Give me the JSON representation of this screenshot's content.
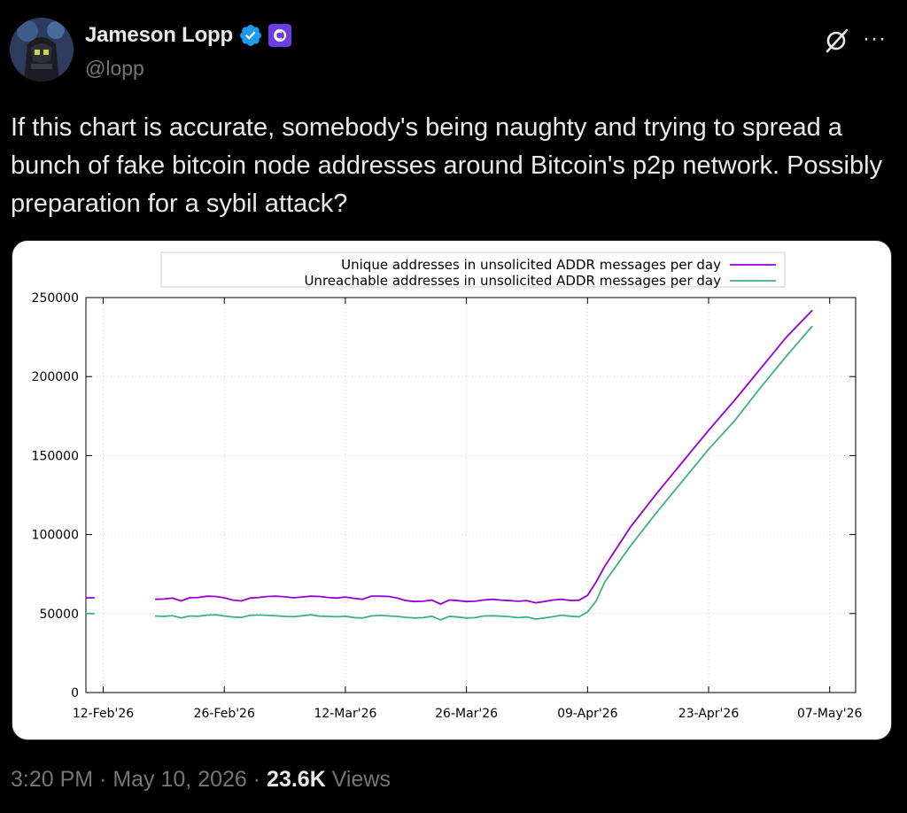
{
  "author": {
    "name": "Jameson Lopp",
    "handle": "@lopp",
    "verified": true,
    "affiliate_badge_color": "#6d3fe0",
    "verified_color": "#1d9bf0"
  },
  "actions": {
    "grok_icon": "grok-icon",
    "more_label": "···"
  },
  "tweet": {
    "text": "If this chart is accurate, somebody's being naughty and trying to spread a bunch of fake bitcoin node addresses around Bitcoin's p2p network. Possibly preparation for a sybil attack?"
  },
  "footer": {
    "time": "3:20 PM",
    "sep1": " · ",
    "date": "May 10, 2026",
    "sep2": " · ",
    "views_count": "23.6K",
    "views_label": " Views"
  },
  "chart_data": {
    "type": "line",
    "title": "",
    "xlabel": "",
    "ylabel": "",
    "ylim": [
      0,
      250000
    ],
    "xlim": [
      "2026-02-10",
      "2026-05-10"
    ],
    "x_ticks": [
      "12-Feb'26",
      "26-Feb'26",
      "12-Mar'26",
      "26-Mar'26",
      "09-Apr'26",
      "23-Apr'26",
      "07-May'26"
    ],
    "y_ticks": [
      "0",
      "50000",
      "100000",
      "150000",
      "200000",
      "250000"
    ],
    "grid": true,
    "legend_position": "top-center",
    "x": [
      "2026-02-10",
      "2026-02-11",
      "2026-02-17",
      "2026-02-18",
      "2026-02-19",
      "2026-02-20",
      "2026-02-21",
      "2026-02-22",
      "2026-02-23",
      "2026-02-24",
      "2026-02-25",
      "2026-02-26",
      "2026-02-27",
      "2026-02-28",
      "2026-03-01",
      "2026-03-02",
      "2026-03-03",
      "2026-03-04",
      "2026-03-05",
      "2026-03-06",
      "2026-03-07",
      "2026-03-08",
      "2026-03-09",
      "2026-03-10",
      "2026-03-11",
      "2026-03-12",
      "2026-03-13",
      "2026-03-14",
      "2026-03-15",
      "2026-03-16",
      "2026-03-17",
      "2026-03-18",
      "2026-03-19",
      "2026-03-20",
      "2026-03-21",
      "2026-03-22",
      "2026-03-23",
      "2026-03-24",
      "2026-03-25",
      "2026-03-26",
      "2026-03-27",
      "2026-03-28",
      "2026-03-29",
      "2026-03-30",
      "2026-03-31",
      "2026-04-01",
      "2026-04-02",
      "2026-04-03",
      "2026-04-04",
      "2026-04-05",
      "2026-04-06",
      "2026-04-07",
      "2026-04-08",
      "2026-04-09",
      "2026-04-10",
      "2026-04-11",
      "2026-04-14",
      "2026-04-17",
      "2026-04-20",
      "2026-04-23",
      "2026-04-26",
      "2026-04-29",
      "2026-05-02",
      "2026-05-05"
    ],
    "series": [
      {
        "name": "Unique addresses in unsolicited ADDR messages per day",
        "color": "#9400d3",
        "values": [
          60000,
          60000,
          null,
          59000,
          59200,
          59800,
          58000,
          60000,
          60200,
          61000,
          60800,
          60000,
          58500,
          58000,
          59800,
          60200,
          60800,
          61000,
          60600,
          60000,
          60500,
          61000,
          60800,
          60200,
          59800,
          60500,
          59600,
          59000,
          61000,
          61000,
          60800,
          59800,
          58200,
          57600,
          57800,
          58500,
          56000,
          58600,
          58200,
          57600,
          57800,
          58600,
          59000,
          58500,
          58200,
          57800,
          58200,
          56800,
          57600,
          58600,
          59000,
          58300,
          58400,
          61500,
          70000,
          80000,
          105000,
          126000,
          146000,
          166000,
          185000,
          205000,
          225000,
          242000
        ]
      },
      {
        "name": "Unreachable addresses in unsolicited ADDR messages per day",
        "color": "#3cb37a",
        "values": [
          50000,
          50000,
          null,
          48500,
          48200,
          48700,
          47200,
          48500,
          48300,
          49000,
          49200,
          48500,
          47800,
          47600,
          48900,
          49100,
          48800,
          48600,
          48200,
          48000,
          48600,
          49200,
          48400,
          48200,
          48000,
          48300,
          47500,
          47200,
          48500,
          48800,
          48500,
          48200,
          47600,
          47200,
          47400,
          48300,
          46000,
          48200,
          47800,
          47200,
          47400,
          48500,
          48600,
          48400,
          48000,
          47400,
          47800,
          46500,
          47200,
          48000,
          49000,
          48300,
          48000,
          51000,
          58000,
          70000,
          93000,
          114000,
          134000,
          154000,
          172000,
          193000,
          213000,
          232000
        ]
      }
    ]
  }
}
